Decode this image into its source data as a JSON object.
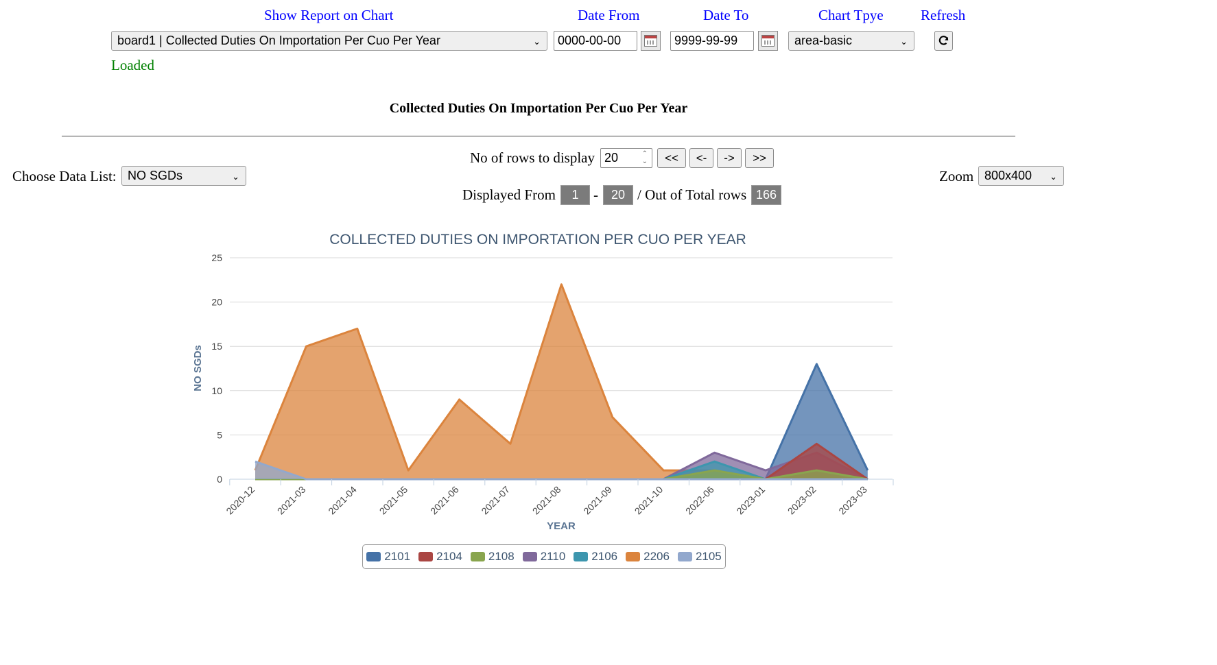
{
  "header": {
    "show_report_label": "Show Report on Chart",
    "date_from_label": "Date From",
    "date_to_label": "Date To",
    "chart_type_label": "Chart Tpye",
    "refresh_label": "Refresh",
    "report_select_value": "board1 | Collected Duties On Importation Per Cuo Per Year",
    "date_from_value": "0000-00-00",
    "date_to_value": "9999-99-99",
    "chart_type_value": "area-basic",
    "status": "Loaded",
    "status_color": "#008000"
  },
  "report_title": "Collected Duties On Importation Per Cuo Per Year",
  "controls": {
    "data_list_label": "Choose Data List:",
    "data_list_value": "NO SGDs",
    "rows_label": "No of rows to display",
    "rows_value": "20",
    "nav_first": "<<",
    "nav_prev": "<-",
    "nav_next": "->",
    "nav_last": ">>",
    "displayed_from_label": "Displayed From",
    "from_value": "1",
    "dash": "-",
    "to_value": "20",
    "total_label": "/ Out of Total rows",
    "total_value": "166",
    "zoom_label": "Zoom",
    "zoom_value": "800x400"
  },
  "chart_data": {
    "type": "area",
    "title": "COLLECTED DUTIES ON IMPORTATION PER CUO PER YEAR",
    "xlabel": "YEAR",
    "ylabel": "NO SGDs",
    "ylim": [
      0,
      25
    ],
    "yticks": [
      0,
      5,
      10,
      15,
      20,
      25
    ],
    "grid": true,
    "legend_position": "bottom",
    "categories": [
      "2020-12",
      "2021-03",
      "2021-04",
      "2021-05",
      "2021-06",
      "2021-07",
      "2021-08",
      "2021-09",
      "2021-10",
      "2022-06",
      "2023-01",
      "2023-02",
      "2023-03"
    ],
    "series": [
      {
        "name": "2101",
        "color": "#4572a7",
        "values": [
          0,
          0,
          0,
          0,
          0,
          0,
          0,
          0,
          0,
          0,
          0,
          13,
          1
        ]
      },
      {
        "name": "2104",
        "color": "#aa4643",
        "values": [
          0,
          0,
          0,
          0,
          0,
          0,
          0,
          0,
          0,
          0,
          0,
          4,
          0
        ]
      },
      {
        "name": "2108",
        "color": "#89a54e",
        "values": [
          0,
          0,
          0,
          0,
          0,
          0,
          0,
          0,
          0,
          1,
          0,
          1,
          0
        ]
      },
      {
        "name": "2110",
        "color": "#80699b",
        "values": [
          0,
          0,
          0,
          0,
          0,
          0,
          0,
          0,
          0,
          3,
          1,
          3,
          0
        ]
      },
      {
        "name": "2106",
        "color": "#3d96ae",
        "values": [
          0,
          0,
          0,
          0,
          0,
          0,
          0,
          0,
          0,
          2,
          0,
          0,
          0
        ]
      },
      {
        "name": "2206",
        "color": "#db843d",
        "values": [
          1,
          15,
          17,
          1,
          9,
          4,
          22,
          7,
          1,
          1,
          0,
          0,
          0
        ]
      },
      {
        "name": "2105",
        "color": "#92a8cd",
        "values": [
          2,
          0,
          0,
          0,
          0,
          0,
          0,
          0,
          0,
          0,
          0,
          0,
          0
        ]
      }
    ]
  }
}
